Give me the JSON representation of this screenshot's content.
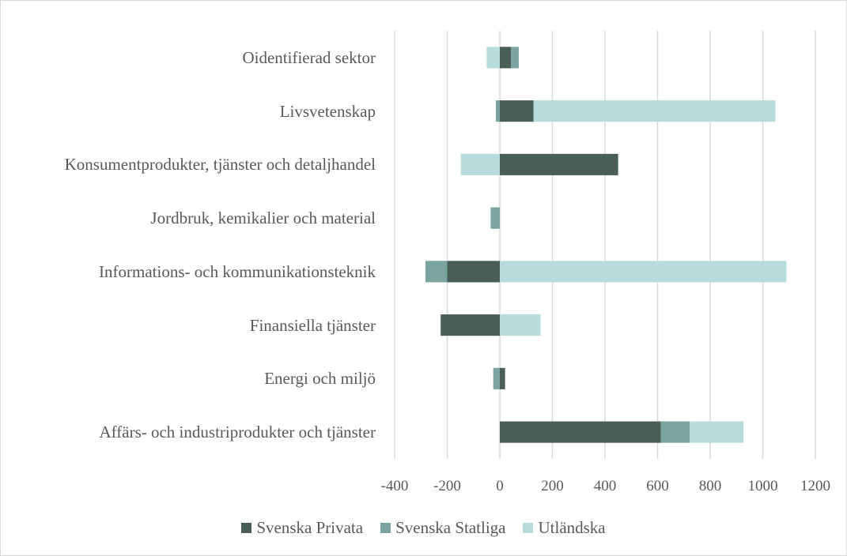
{
  "chart_data": {
    "type": "bar",
    "orientation": "horizontal",
    "stacked": true,
    "categories": [
      "Oidentifierad sektor",
      "Livsvetenskap",
      "Konsumentprodukter, tjänster och detaljhandel",
      "Jordbruk, kemikalier och material",
      "Informations- och kommunikationsteknik",
      "Finansiella tjänster",
      "Energi och miljö",
      "Affärs- och industriprodukter och tjänster"
    ],
    "series": [
      {
        "name": "Svenska Privata",
        "color": "#4a5e58",
        "values": [
          42,
          128,
          450,
          0,
          -200,
          -225,
          20,
          612
        ]
      },
      {
        "name": "Svenska Statliga",
        "color": "#7ba3a0",
        "values": [
          30,
          -15,
          0,
          -35,
          -83,
          0,
          -25,
          110
        ]
      },
      {
        "name": "Utländska",
        "color": "#b8dcdb",
        "values": [
          -50,
          920,
          -148,
          0,
          1090,
          155,
          0,
          205
        ]
      }
    ],
    "xlim": [
      -400,
      1200
    ],
    "xticks": [
      -400,
      -200,
      0,
      200,
      400,
      600,
      800,
      1000,
      1200
    ],
    "grid": true,
    "legend": "bottom"
  }
}
